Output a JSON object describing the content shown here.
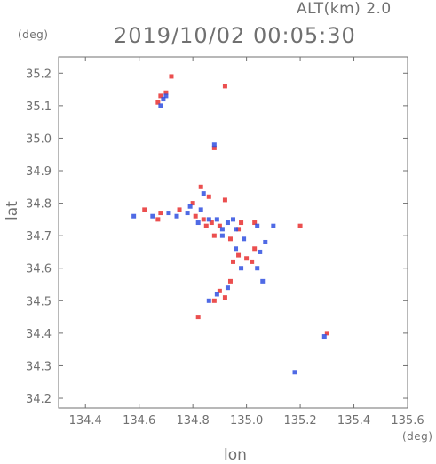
{
  "header": {
    "altitude": "ALT(km) 2.0",
    "timestamp": "2019/10/02 00:05:30"
  },
  "chart_data": {
    "type": "scatter",
    "title": "2019/10/02 00:05:30",
    "xlabel": "lon",
    "ylabel": "lat",
    "x_unit": "(deg)",
    "y_unit": "(deg)",
    "xlim": [
      134.3,
      135.6
    ],
    "ylim": [
      34.17,
      35.25
    ],
    "x_ticks": [
      "134.4",
      "134.6",
      "134.8",
      "135.0",
      "135.2",
      "135.4",
      "135.6"
    ],
    "y_ticks": [
      "34.2",
      "34.3",
      "34.4",
      "34.5",
      "34.6",
      "34.7",
      "34.8",
      "34.9",
      "35.0",
      "35.1",
      "35.2"
    ],
    "grid": false,
    "colors": {
      "positive": "#e83030",
      "negative": "#3050e0",
      "axis": "#707070"
    },
    "series": [
      {
        "values": [
          [
            134.72,
            35.19
          ],
          [
            134.7,
            35.14
          ],
          [
            134.68,
            35.13
          ],
          [
            134.67,
            35.11
          ],
          [
            134.92,
            35.16
          ],
          [
            134.88,
            34.97
          ],
          [
            134.83,
            34.85
          ],
          [
            134.86,
            34.82
          ],
          [
            134.92,
            34.81
          ],
          [
            134.8,
            34.8
          ],
          [
            134.62,
            34.78
          ],
          [
            134.68,
            34.77
          ],
          [
            134.75,
            34.78
          ],
          [
            134.81,
            34.76
          ],
          [
            134.84,
            34.75
          ],
          [
            134.87,
            34.74
          ],
          [
            134.9,
            34.73
          ],
          [
            134.98,
            34.74
          ],
          [
            135.03,
            34.74
          ],
          [
            134.88,
            34.7
          ],
          [
            134.94,
            34.69
          ],
          [
            135.03,
            34.66
          ],
          [
            134.97,
            34.64
          ],
          [
            135.02,
            34.62
          ],
          [
            134.92,
            34.51
          ],
          [
            134.9,
            34.53
          ],
          [
            134.94,
            34.56
          ],
          [
            134.82,
            34.45
          ],
          [
            135.2,
            34.73
          ],
          [
            135.3,
            34.4
          ],
          [
            134.67,
            34.75
          ],
          [
            134.85,
            34.73
          ],
          [
            134.97,
            34.72
          ],
          [
            135.0,
            34.63
          ],
          [
            134.88,
            34.5
          ],
          [
            134.95,
            34.62
          ]
        ]
      },
      {
        "values": [
          [
            134.7,
            35.13
          ],
          [
            134.69,
            35.12
          ],
          [
            134.68,
            35.1
          ],
          [
            134.88,
            34.98
          ],
          [
            134.84,
            34.83
          ],
          [
            134.79,
            34.79
          ],
          [
            134.58,
            34.76
          ],
          [
            134.65,
            34.76
          ],
          [
            134.71,
            34.77
          ],
          [
            134.78,
            34.77
          ],
          [
            134.82,
            34.74
          ],
          [
            134.86,
            34.75
          ],
          [
            134.89,
            34.75
          ],
          [
            134.93,
            34.74
          ],
          [
            134.96,
            34.72
          ],
          [
            135.04,
            34.73
          ],
          [
            134.91,
            34.7
          ],
          [
            134.99,
            34.69
          ],
          [
            135.07,
            34.68
          ],
          [
            135.05,
            34.65
          ],
          [
            134.98,
            34.6
          ],
          [
            135.04,
            34.6
          ],
          [
            134.89,
            34.52
          ],
          [
            134.93,
            34.54
          ],
          [
            135.29,
            34.39
          ],
          [
            135.18,
            34.28
          ],
          [
            134.74,
            34.76
          ],
          [
            134.83,
            34.78
          ],
          [
            134.95,
            34.75
          ],
          [
            135.1,
            34.73
          ],
          [
            135.06,
            34.56
          ],
          [
            134.96,
            34.66
          ],
          [
            134.86,
            34.5
          ],
          [
            134.91,
            34.72
          ]
        ]
      }
    ]
  }
}
